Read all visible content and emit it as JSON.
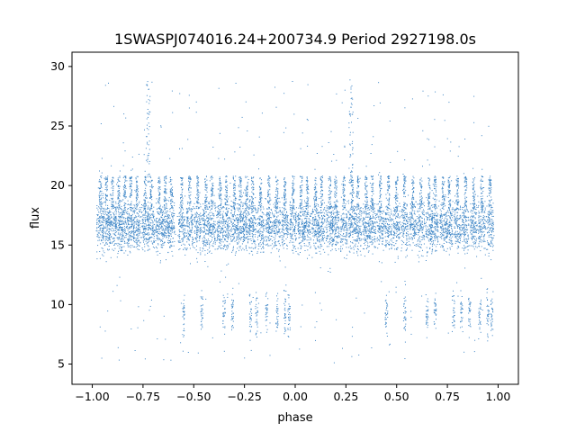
{
  "chart_data": {
    "type": "scatter",
    "title": "1SWASPJ074016.24+200734.9 Period 2927198.0s",
    "xlabel": "phase",
    "ylabel": "flux",
    "xlim": [
      -1.1,
      1.1
    ],
    "ylim": [
      3.3,
      31.2
    ],
    "xticks": [
      -1.0,
      -0.75,
      -0.5,
      -0.25,
      0.0,
      0.25,
      0.5,
      0.75,
      1.0
    ],
    "xtick_labels": [
      "−1.00",
      "−0.75",
      "−0.50",
      "−0.25",
      "0.00",
      "0.25",
      "0.50",
      "0.75",
      "1.00"
    ],
    "yticks": [
      5,
      10,
      15,
      20,
      25,
      30
    ],
    "ytick_labels": [
      "5",
      "10",
      "15",
      "20",
      "25",
      "30"
    ],
    "grid": false,
    "marker_color": "#3d85c6",
    "series": [
      {
        "description_points": "dense light curve; bulk flux 15-18 with excursions",
        "core_band": [
          15.0,
          18.2
        ],
        "upper_band": [
          18.5,
          21.5
        ],
        "points": [
          [
            -0.98,
            16.2
          ],
          [
            -0.97,
            19.8
          ],
          [
            -0.96,
            15.1
          ],
          [
            -0.95,
            17.4
          ],
          [
            -0.94,
            20.6
          ],
          [
            -0.93,
            16.9
          ],
          [
            -0.92,
            15.4
          ],
          [
            -0.91,
            19.2
          ],
          [
            -0.9,
            16.7
          ],
          [
            -0.89,
            15.9
          ],
          [
            -0.88,
            20.1
          ],
          [
            -0.87,
            17.1
          ],
          [
            -0.86,
            15.3
          ],
          [
            -0.85,
            18.8
          ],
          [
            -0.84,
            16.4
          ],
          [
            -0.83,
            20.4
          ],
          [
            -0.82,
            15.7
          ],
          [
            -0.81,
            17.9
          ],
          [
            -0.8,
            16.1
          ],
          [
            -0.79,
            19.6
          ],
          [
            -0.78,
            15.2
          ],
          [
            -0.77,
            14.6
          ],
          [
            -0.76,
            16.8
          ],
          [
            -0.75,
            18.3
          ],
          [
            -0.74,
            21.2
          ],
          [
            -0.73,
            24.8
          ],
          [
            -0.72,
            26.9
          ],
          [
            -0.71,
            17.3
          ],
          [
            -0.7,
            19.9
          ],
          [
            -0.69,
            16.2
          ],
          [
            -0.68,
            15.6
          ],
          [
            -0.67,
            20.7
          ],
          [
            -0.66,
            17.8
          ],
          [
            -0.65,
            16.4
          ],
          [
            -0.64,
            19.5
          ],
          [
            -0.63,
            15.8
          ],
          [
            -0.62,
            20.3
          ],
          [
            -0.61,
            17.1
          ],
          [
            -0.6,
            16.5
          ],
          [
            -0.59,
            15.9
          ],
          [
            -0.58,
            17.4
          ],
          [
            -0.57,
            16.1
          ],
          [
            -0.56,
            15.5
          ],
          [
            -0.55,
            9.8
          ],
          [
            -0.54,
            16.6
          ],
          [
            -0.53,
            17.2
          ],
          [
            -0.52,
            15.8
          ],
          [
            -0.51,
            16.9
          ],
          [
            -0.5,
            18.1
          ],
          [
            -0.49,
            15.6
          ],
          [
            -0.48,
            16.3
          ],
          [
            -0.47,
            19.4
          ],
          [
            -0.46,
            10.5
          ],
          [
            -0.45,
            17.1
          ],
          [
            -0.44,
            15.2
          ],
          [
            -0.43,
            16.8
          ],
          [
            -0.42,
            20.4
          ],
          [
            -0.41,
            15.9
          ],
          [
            -0.4,
            17.5
          ],
          [
            -0.39,
            16.2
          ],
          [
            -0.38,
            19.7
          ],
          [
            -0.37,
            15.4
          ],
          [
            -0.36,
            16.9
          ],
          [
            -0.35,
            9.1
          ],
          [
            -0.34,
            17.6
          ],
          [
            -0.33,
            15.7
          ],
          [
            -0.32,
            20.2
          ],
          [
            -0.31,
            16.3
          ],
          [
            -0.3,
            15.6
          ],
          [
            -0.29,
            18.9
          ],
          [
            -0.28,
            17.2
          ],
          [
            -0.27,
            16.0
          ],
          [
            -0.26,
            19.1
          ],
          [
            -0.25,
            15.8
          ],
          [
            -0.24,
            16.7
          ],
          [
            -0.23,
            20.5
          ],
          [
            -0.22,
            9.4
          ],
          [
            -0.21,
            17.0
          ],
          [
            -0.2,
            15.3
          ],
          [
            -0.19,
            16.6
          ],
          [
            -0.18,
            10.1
          ],
          [
            -0.17,
            17.9
          ],
          [
            -0.16,
            15.9
          ],
          [
            -0.15,
            16.4
          ],
          [
            -0.14,
            9.6
          ],
          [
            -0.13,
            17.3
          ],
          [
            -0.12,
            15.5
          ],
          [
            -0.11,
            16.9
          ],
          [
            -0.1,
            19.0
          ],
          [
            -0.09,
            8.8
          ],
          [
            -0.08,
            16.2
          ],
          [
            -0.07,
            15.8
          ],
          [
            -0.06,
            17.1
          ],
          [
            -0.05,
            8.9
          ],
          [
            -0.04,
            16.3
          ],
          [
            -0.03,
            9.6
          ],
          [
            -0.02,
            15.7
          ],
          [
            -0.01,
            16.1
          ],
          [
            0.0,
            16.5
          ],
          [
            0.01,
            17.4
          ],
          [
            0.02,
            16.0
          ],
          [
            0.03,
            19.8
          ],
          [
            0.04,
            15.6
          ],
          [
            0.05,
            16.9
          ],
          [
            0.06,
            20.3
          ],
          [
            0.07,
            15.2
          ],
          [
            0.08,
            17.6
          ],
          [
            0.09,
            16.4
          ],
          [
            0.1,
            15.9
          ],
          [
            0.11,
            16.7
          ],
          [
            0.12,
            17.2
          ],
          [
            0.13,
            15.5
          ],
          [
            0.14,
            16.3
          ],
          [
            0.15,
            17.9
          ],
          [
            0.16,
            15.8
          ],
          [
            0.17,
            16.6
          ],
          [
            0.18,
            19.5
          ],
          [
            0.19,
            15.4
          ],
          [
            0.2,
            16.9
          ],
          [
            0.21,
            17.3
          ],
          [
            0.22,
            15.7
          ],
          [
            0.23,
            20.1
          ],
          [
            0.24,
            16.2
          ],
          [
            0.25,
            15.1
          ],
          [
            0.26,
            17.8
          ],
          [
            0.27,
            22.4
          ],
          [
            0.28,
            26.8
          ],
          [
            0.29,
            19.4
          ],
          [
            0.3,
            16.5
          ],
          [
            0.31,
            15.6
          ],
          [
            0.32,
            20.6
          ],
          [
            0.33,
            17.0
          ],
          [
            0.34,
            16.3
          ],
          [
            0.35,
            19.3
          ],
          [
            0.36,
            15.8
          ],
          [
            0.37,
            20.2
          ],
          [
            0.38,
            16.9
          ],
          [
            0.39,
            15.4
          ],
          [
            0.4,
            17.6
          ],
          [
            0.41,
            16.1
          ],
          [
            0.42,
            15.7
          ],
          [
            0.43,
            16.8
          ],
          [
            0.44,
            17.2
          ],
          [
            0.45,
            9.7
          ],
          [
            0.46,
            16.4
          ],
          [
            0.47,
            15.9
          ],
          [
            0.48,
            17.1
          ],
          [
            0.49,
            16.0
          ],
          [
            0.5,
            18.2
          ],
          [
            0.51,
            15.6
          ],
          [
            0.52,
            16.7
          ],
          [
            0.53,
            19.6
          ],
          [
            0.54,
            10.3
          ],
          [
            0.55,
            17.0
          ],
          [
            0.56,
            15.3
          ],
          [
            0.57,
            16.5
          ],
          [
            0.58,
            20.3
          ],
          [
            0.59,
            15.8
          ],
          [
            0.6,
            17.4
          ],
          [
            0.61,
            16.2
          ],
          [
            0.62,
            19.9
          ],
          [
            0.63,
            15.5
          ],
          [
            0.64,
            16.8
          ],
          [
            0.65,
            9.2
          ],
          [
            0.66,
            17.5
          ],
          [
            0.67,
            15.9
          ],
          [
            0.68,
            20.1
          ],
          [
            0.69,
            16.4
          ],
          [
            0.7,
            15.7
          ],
          [
            0.71,
            18.7
          ],
          [
            0.72,
            17.1
          ],
          [
            0.73,
            16.1
          ],
          [
            0.74,
            19.2
          ],
          [
            0.75,
            15.8
          ],
          [
            0.76,
            16.5
          ],
          [
            0.77,
            20.4
          ],
          [
            0.78,
            9.5
          ],
          [
            0.79,
            17.2
          ],
          [
            0.8,
            15.4
          ],
          [
            0.81,
            16.7
          ],
          [
            0.82,
            10.0
          ],
          [
            0.83,
            17.8
          ],
          [
            0.84,
            15.9
          ],
          [
            0.85,
            16.3
          ],
          [
            0.86,
            9.5
          ],
          [
            0.87,
            17.4
          ],
          [
            0.88,
            15.6
          ],
          [
            0.89,
            16.8
          ],
          [
            0.9,
            19.1
          ],
          [
            0.91,
            8.9
          ],
          [
            0.92,
            16.1
          ],
          [
            0.93,
            15.7
          ],
          [
            0.94,
            17.0
          ],
          [
            0.95,
            9.0
          ],
          [
            0.96,
            16.4
          ],
          [
            0.97,
            9.7
          ],
          [
            0.98,
            15.8
          ]
        ]
      }
    ]
  }
}
